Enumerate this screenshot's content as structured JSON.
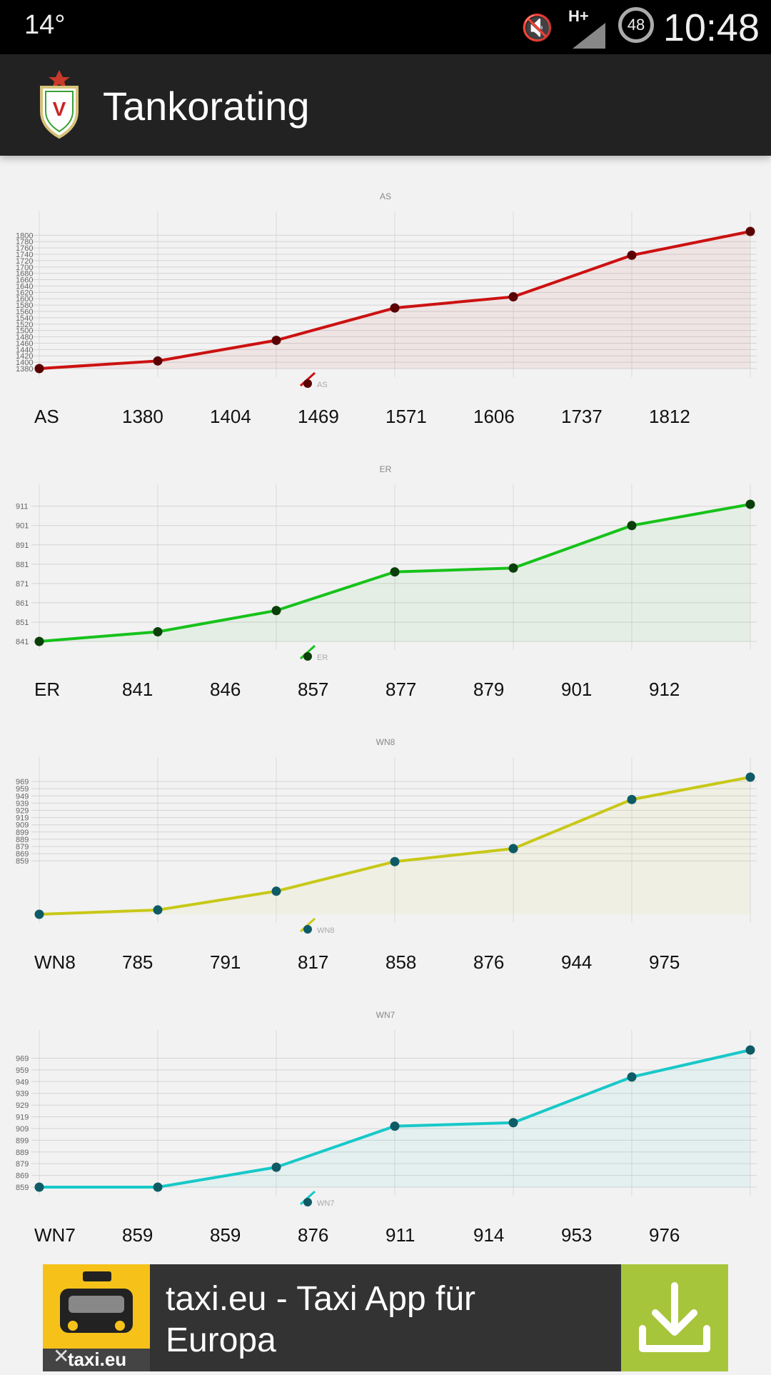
{
  "status_bar": {
    "temperature": "14°",
    "network": "H+",
    "battery": "48",
    "time": "10:48"
  },
  "app_bar": {
    "title": "Tankorating",
    "logo_icon": "shield-logo-icon"
  },
  "charts": [
    {
      "label": "AS",
      "color": "#cc1111",
      "dot_color": "#5a0000",
      "y_ticks": [
        1380,
        1400,
        1420,
        1440,
        1460,
        1480,
        1500,
        1520,
        1540,
        1560,
        1580,
        1600,
        1620,
        1640,
        1660,
        1680,
        1700,
        1720,
        1740,
        1760,
        1780,
        1800
      ],
      "ylim": [
        1380,
        1812
      ],
      "values": [
        1380,
        1404,
        1469,
        1571,
        1606,
        1737,
        1812
      ],
      "legend": "AS"
    },
    {
      "label": "ER",
      "color": "#16c21a",
      "dot_color": "#0a3f0a",
      "y_ticks": [
        841,
        851,
        861,
        871,
        881,
        891,
        901,
        911
      ],
      "ylim": [
        841,
        912
      ],
      "values": [
        841,
        846,
        857,
        877,
        879,
        901,
        912
      ],
      "legend": "ER"
    },
    {
      "label": "WN8",
      "color": "#c8c818",
      "dot_color": "#0e5b66",
      "y_ticks": [
        859,
        869,
        879,
        889,
        899,
        909,
        919,
        929,
        939,
        949,
        959,
        969
      ],
      "ylim": [
        785,
        975
      ],
      "values": [
        785,
        791,
        817,
        858,
        876,
        944,
        975
      ],
      "legend": "WN8"
    },
    {
      "label": "WN7",
      "color": "#18c8c8",
      "dot_color": "#0e5b66",
      "y_ticks": [
        859,
        869,
        879,
        889,
        899,
        909,
        919,
        929,
        939,
        949,
        959,
        969
      ],
      "ylim": [
        859,
        976
      ],
      "values": [
        859,
        859,
        876,
        911,
        914,
        953,
        976
      ],
      "legend": "WN7"
    }
  ],
  "chart_data": [
    {
      "type": "line",
      "title": "AS",
      "x": [
        1,
        2,
        3,
        4,
        5,
        6,
        7
      ],
      "series": [
        {
          "name": "AS",
          "values": [
            1380,
            1404,
            1469,
            1571,
            1606,
            1737,
            1812
          ]
        }
      ]
    },
    {
      "type": "line",
      "title": "ER",
      "x": [
        1,
        2,
        3,
        4,
        5,
        6,
        7
      ],
      "series": [
        {
          "name": "ER",
          "values": [
            841,
            846,
            857,
            877,
            879,
            901,
            912
          ]
        }
      ]
    },
    {
      "type": "line",
      "title": "WN8",
      "x": [
        1,
        2,
        3,
        4,
        5,
        6,
        7
      ],
      "series": [
        {
          "name": "WN8",
          "values": [
            785,
            791,
            817,
            858,
            876,
            944,
            975
          ]
        }
      ]
    },
    {
      "type": "line",
      "title": "WN7",
      "x": [
        1,
        2,
        3,
        4,
        5,
        6,
        7
      ],
      "series": [
        {
          "name": "WN7",
          "values": [
            859,
            859,
            876,
            911,
            914,
            953,
            976
          ]
        }
      ]
    }
  ],
  "ad": {
    "text": "taxi.eu - Taxi App für Europa",
    "brand": "taxi.eu",
    "download_icon": "download-icon",
    "close_icon": "close-icon"
  }
}
